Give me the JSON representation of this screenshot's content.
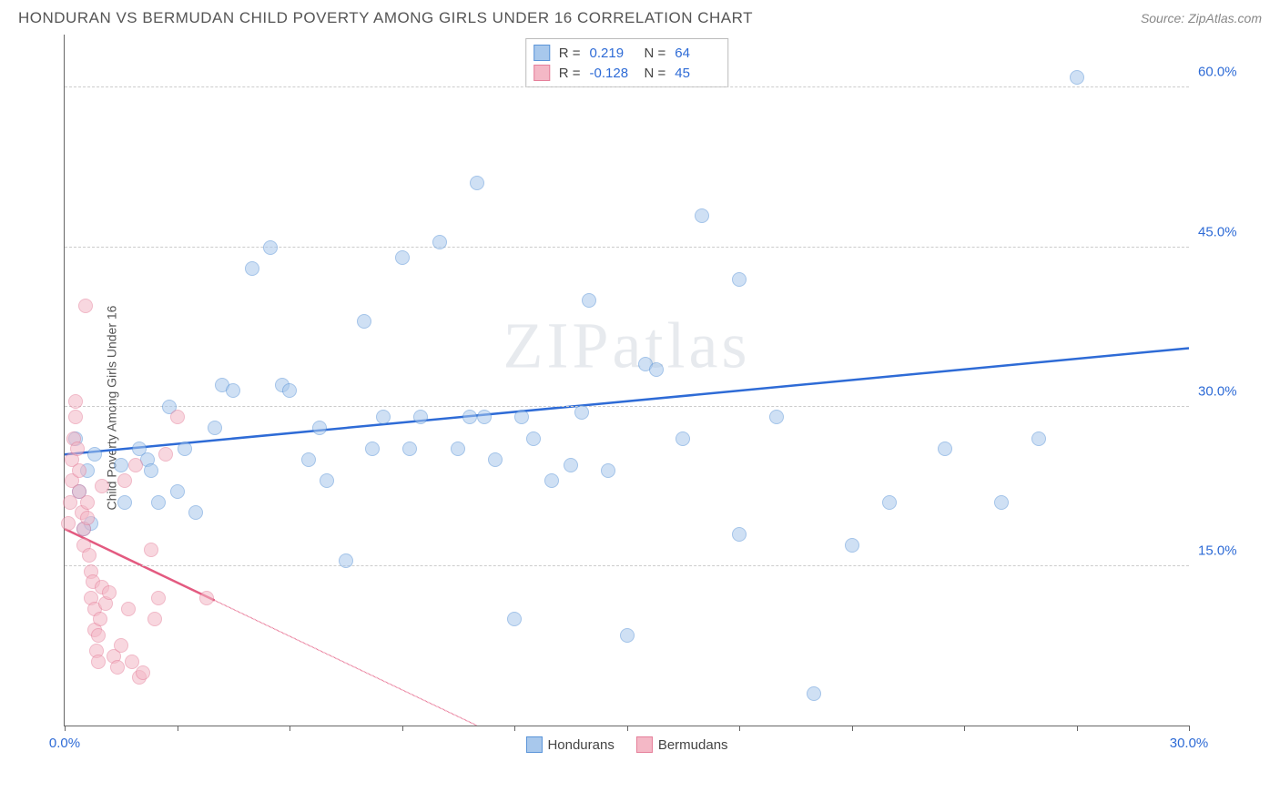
{
  "title": "HONDURAN VS BERMUDAN CHILD POVERTY AMONG GIRLS UNDER 16 CORRELATION CHART",
  "source": "Source: ZipAtlas.com",
  "ylabel": "Child Poverty Among Girls Under 16",
  "watermark": "ZIPatlas",
  "chart": {
    "type": "scatter",
    "background_color": "#ffffff",
    "grid_color": "#cccccc",
    "axis_color": "#666666",
    "xlim": [
      0,
      30
    ],
    "ylim": [
      0,
      65
    ],
    "xticks": [
      0,
      3,
      6,
      9,
      12,
      15,
      18,
      21,
      24,
      27,
      30
    ],
    "xtick_labels": {
      "0": "0.0%",
      "30": "30.0%"
    },
    "xtick_color": "#2e6bd6",
    "yticks": [
      15,
      30,
      45,
      60
    ],
    "ytick_labels": {
      "15": "15.0%",
      "30": "30.0%",
      "45": "45.0%",
      "60": "60.0%"
    },
    "ytick_color": "#2e6bd6",
    "marker_radius": 8,
    "marker_opacity": 0.55,
    "label_fontsize": 14
  },
  "series": [
    {
      "name": "Hondurans",
      "color_fill": "#a8c8ec",
      "color_stroke": "#5a94d8",
      "R": "0.219",
      "N": "64",
      "trend": {
        "x1": 0,
        "y1": 25.5,
        "x2": 30,
        "y2": 35.5,
        "dashed_after_x": null,
        "line_width": 2.5,
        "line_color": "#2e6bd6"
      },
      "points": [
        [
          0.3,
          27
        ],
        [
          0.4,
          22
        ],
        [
          0.5,
          18.5
        ],
        [
          0.6,
          24
        ],
        [
          0.7,
          19
        ],
        [
          0.8,
          25.5
        ],
        [
          1.5,
          24.5
        ],
        [
          1.6,
          21
        ],
        [
          2.0,
          26
        ],
        [
          2.2,
          25
        ],
        [
          2.3,
          24
        ],
        [
          2.5,
          21
        ],
        [
          2.8,
          30
        ],
        [
          3.0,
          22
        ],
        [
          3.2,
          26
        ],
        [
          3.5,
          20
        ],
        [
          4.0,
          28
        ],
        [
          4.2,
          32
        ],
        [
          4.5,
          31.5
        ],
        [
          5.0,
          43
        ],
        [
          5.5,
          45
        ],
        [
          5.8,
          32
        ],
        [
          6.0,
          31.5
        ],
        [
          6.5,
          25
        ],
        [
          6.8,
          28
        ],
        [
          7.0,
          23
        ],
        [
          7.5,
          15.5
        ],
        [
          8.0,
          38
        ],
        [
          8.2,
          26
        ],
        [
          8.5,
          29
        ],
        [
          9.0,
          44
        ],
        [
          9.2,
          26
        ],
        [
          9.5,
          29
        ],
        [
          10.0,
          45.5
        ],
        [
          10.5,
          26
        ],
        [
          10.8,
          29
        ],
        [
          11.0,
          51
        ],
        [
          11.2,
          29
        ],
        [
          11.5,
          25
        ],
        [
          12.0,
          10
        ],
        [
          12.2,
          29
        ],
        [
          12.5,
          27
        ],
        [
          13.0,
          23
        ],
        [
          13.5,
          24.5
        ],
        [
          13.8,
          29.5
        ],
        [
          14.0,
          40
        ],
        [
          14.5,
          24
        ],
        [
          15.0,
          8.5
        ],
        [
          15.5,
          34
        ],
        [
          15.8,
          33.5
        ],
        [
          16.5,
          27
        ],
        [
          17.0,
          48
        ],
        [
          18.0,
          18
        ],
        [
          18.0,
          42
        ],
        [
          19.0,
          29
        ],
        [
          20.0,
          3
        ],
        [
          21.0,
          17
        ],
        [
          22.0,
          21
        ],
        [
          23.5,
          26
        ],
        [
          25.0,
          21
        ],
        [
          26.0,
          27
        ],
        [
          27.0,
          61
        ]
      ]
    },
    {
      "name": "Bermudans",
      "color_fill": "#f4b8c6",
      "color_stroke": "#e57f9a",
      "R": "-0.128",
      "N": "45",
      "trend": {
        "x1": 0,
        "y1": 18.5,
        "x2": 11,
        "y2": 0,
        "dashed_after_x": 4,
        "line_width": 2.5,
        "line_color": "#e35a80"
      },
      "points": [
        [
          0.1,
          19
        ],
        [
          0.15,
          21
        ],
        [
          0.2,
          25
        ],
        [
          0.2,
          23
        ],
        [
          0.25,
          27
        ],
        [
          0.3,
          29
        ],
        [
          0.3,
          30.5
        ],
        [
          0.35,
          26
        ],
        [
          0.4,
          24
        ],
        [
          0.4,
          22
        ],
        [
          0.45,
          20
        ],
        [
          0.5,
          18.5
        ],
        [
          0.5,
          17
        ],
        [
          0.55,
          39.5
        ],
        [
          0.6,
          21
        ],
        [
          0.6,
          19.5
        ],
        [
          0.65,
          16
        ],
        [
          0.7,
          14.5
        ],
        [
          0.7,
          12
        ],
        [
          0.75,
          13.5
        ],
        [
          0.8,
          11
        ],
        [
          0.8,
          9
        ],
        [
          0.85,
          7
        ],
        [
          0.9,
          6
        ],
        [
          0.9,
          8.5
        ],
        [
          0.95,
          10
        ],
        [
          1.0,
          13
        ],
        [
          1.0,
          22.5
        ],
        [
          1.1,
          11.5
        ],
        [
          1.2,
          12.5
        ],
        [
          1.3,
          6.5
        ],
        [
          1.4,
          5.5
        ],
        [
          1.5,
          7.5
        ],
        [
          1.6,
          23
        ],
        [
          1.7,
          11
        ],
        [
          1.8,
          6
        ],
        [
          1.9,
          24.5
        ],
        [
          2.0,
          4.5
        ],
        [
          2.1,
          5
        ],
        [
          2.3,
          16.5
        ],
        [
          2.4,
          10
        ],
        [
          2.5,
          12
        ],
        [
          2.7,
          25.5
        ],
        [
          3.0,
          29
        ],
        [
          3.8,
          12
        ]
      ]
    }
  ],
  "stats_box": {
    "r_label": "R =",
    "n_label": "N ="
  },
  "legend": {
    "items": [
      "Hondurans",
      "Bermudans"
    ]
  }
}
